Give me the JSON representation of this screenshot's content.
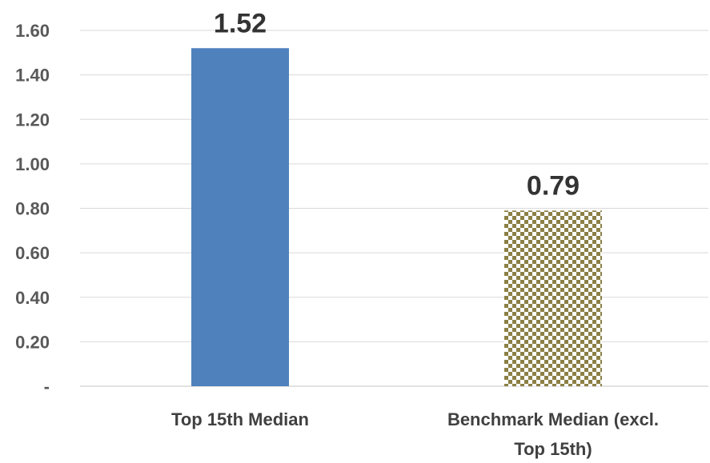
{
  "chart_data": {
    "type": "bar",
    "categories": [
      [
        "Top 15th Median"
      ],
      [
        "Benchmark Median (excl.",
        "Top 15th)"
      ]
    ],
    "values": [
      1.52,
      0.79
    ],
    "data_labels": [
      "1.52",
      "0.79"
    ],
    "ylim": [
      0,
      1.6
    ],
    "yticks": [
      0,
      0.2,
      0.4,
      0.6,
      0.8,
      1.0,
      1.2,
      1.4,
      1.6
    ],
    "ytick_labels": [
      "-",
      "0.20",
      "0.40",
      "0.60",
      "0.80",
      "1.00",
      "1.20",
      "1.40",
      "1.60"
    ],
    "grid": true,
    "title": "",
    "xlabel": "",
    "ylabel": "",
    "bar_styles": [
      {
        "fill": "solid",
        "color": "#4f81bd"
      },
      {
        "fill": "checkerboard",
        "color": "#8b8046"
      }
    ]
  }
}
